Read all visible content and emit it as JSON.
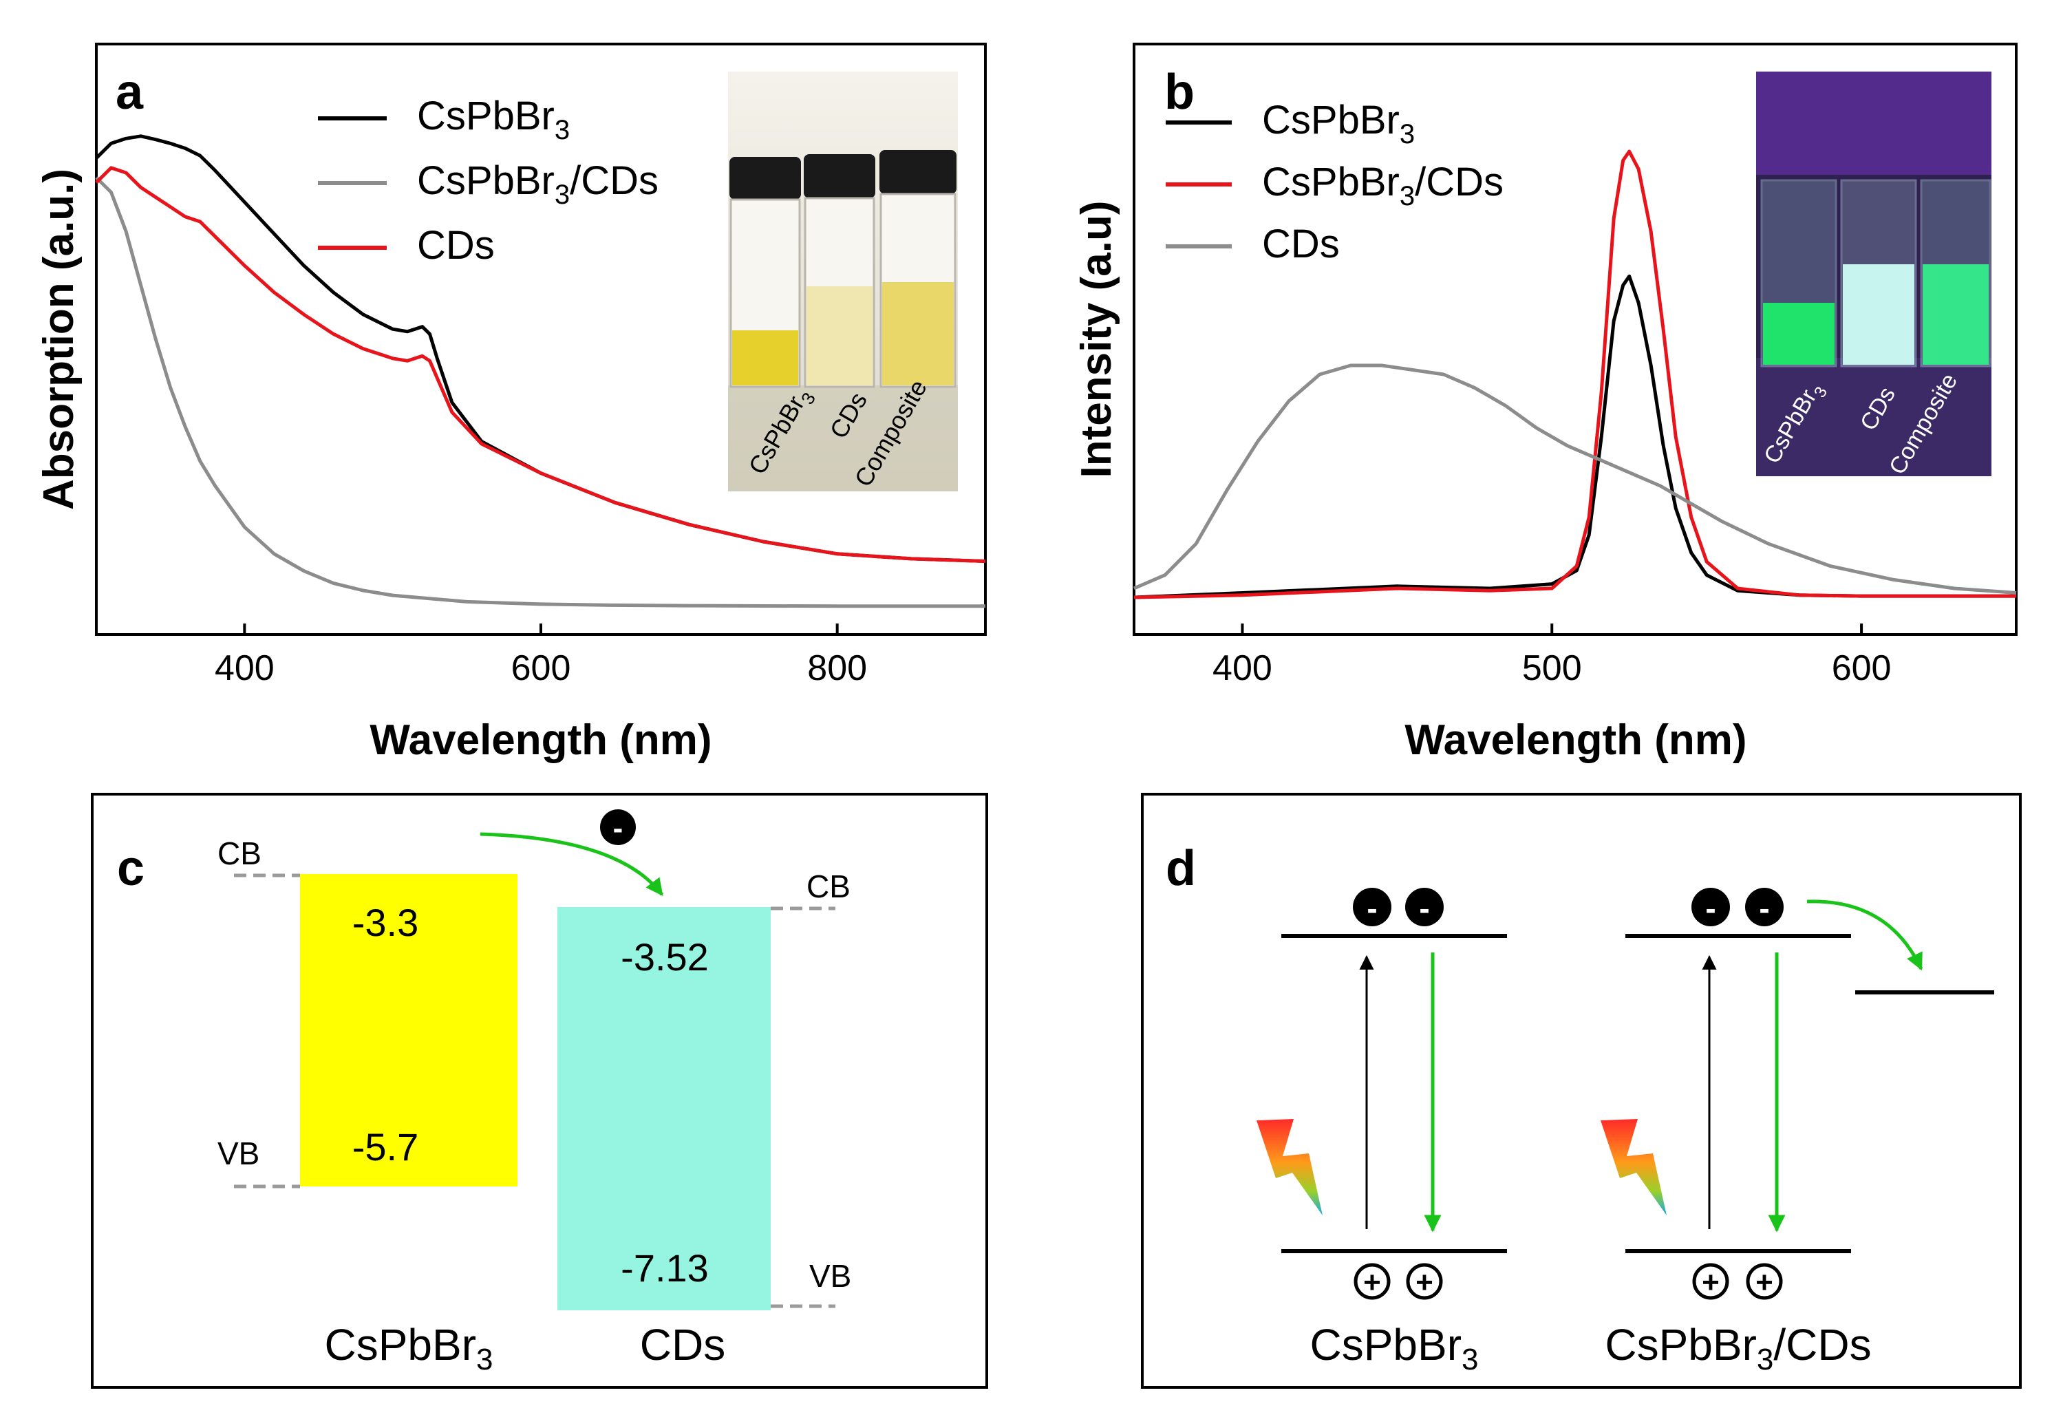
{
  "panels": {
    "a": {
      "label": "a"
    },
    "b": {
      "label": "b"
    },
    "c": {
      "label": "c"
    },
    "d": {
      "label": "d"
    }
  },
  "chart_data": [
    {
      "type": "line",
      "panel": "a",
      "title": "",
      "xlabel": "Wavelength (nm)",
      "ylabel": "Absorption (a.u.)",
      "xlim": [
        300,
        900
      ],
      "ylim": [
        0,
        1
      ],
      "xticks": [
        "400",
        "600",
        "800"
      ],
      "legend": {
        "position": "top-left-center",
        "entries": [
          {
            "base": "CsPbBr",
            "sub": "3",
            "tail": "",
            "color": "#000000"
          },
          {
            "base": "CsPbBr",
            "sub": "3",
            "tail": "/CDs",
            "color": "#8c8c8c"
          },
          {
            "base": "CDs",
            "sub": "",
            "tail": "",
            "color": "#e8141b"
          }
        ]
      },
      "series": [
        {
          "name": "CsPbBr3",
          "color": "#000000",
          "x": [
            300,
            310,
            320,
            330,
            340,
            350,
            360,
            370,
            380,
            400,
            420,
            440,
            460,
            480,
            500,
            510,
            515,
            520,
            525,
            530,
            540,
            560,
            600,
            650,
            700,
            750,
            800,
            850,
            900
          ],
          "y": [
            0.93,
            0.96,
            0.97,
            0.975,
            0.968,
            0.96,
            0.95,
            0.935,
            0.905,
            0.84,
            0.775,
            0.71,
            0.655,
            0.61,
            0.58,
            0.575,
            0.58,
            0.585,
            0.57,
            0.52,
            0.43,
            0.35,
            0.285,
            0.225,
            0.18,
            0.145,
            0.12,
            0.11,
            0.105
          ]
        },
        {
          "name": "CsPbBr3/CDs",
          "color": "#8c8c8c",
          "x": [
            300,
            310,
            320,
            330,
            340,
            350,
            360,
            370,
            380,
            400,
            420,
            440,
            460,
            480,
            500,
            550,
            600,
            650,
            700,
            800,
            900
          ],
          "y": [
            0.89,
            0.86,
            0.78,
            0.67,
            0.56,
            0.46,
            0.38,
            0.31,
            0.26,
            0.175,
            0.12,
            0.085,
            0.06,
            0.045,
            0.035,
            0.022,
            0.017,
            0.015,
            0.014,
            0.013,
            0.013
          ]
        },
        {
          "name": "CDs",
          "color": "#e8141b",
          "x": [
            300,
            310,
            320,
            330,
            340,
            350,
            360,
            370,
            380,
            400,
            420,
            440,
            460,
            480,
            500,
            510,
            515,
            520,
            525,
            530,
            540,
            560,
            600,
            650,
            700,
            750,
            800,
            850,
            900
          ],
          "y": [
            0.88,
            0.91,
            0.9,
            0.87,
            0.85,
            0.83,
            0.81,
            0.8,
            0.77,
            0.71,
            0.655,
            0.61,
            0.57,
            0.54,
            0.52,
            0.515,
            0.52,
            0.525,
            0.515,
            0.48,
            0.41,
            0.345,
            0.285,
            0.225,
            0.18,
            0.145,
            0.12,
            0.11,
            0.105
          ]
        }
      ],
      "inset": {
        "background": "#e6e4dc",
        "labels": [
          "CsPbBr",
          "CDs",
          "Composite"
        ],
        "label_sub": [
          "3",
          "",
          ""
        ]
      }
    },
    {
      "type": "line",
      "panel": "b",
      "title": "",
      "xlabel": "Wavelength (nm)",
      "ylabel": "Intensity (a.u)",
      "xlim": [
        365,
        650
      ],
      "ylim": [
        0,
        1
      ],
      "xticks": [
        "400",
        "500",
        "600"
      ],
      "legend": {
        "position": "top-left",
        "entries": [
          {
            "base": "CsPbBr",
            "sub": "3",
            "tail": "",
            "color": "#000000"
          },
          {
            "base": "CsPbBr",
            "sub": "3",
            "tail": "/CDs",
            "color": "#e8141b"
          },
          {
            "base": "CDs",
            "sub": "",
            "tail": "",
            "color": "#8c8c8c"
          }
        ]
      },
      "series": [
        {
          "name": "CsPbBr3",
          "color": "#000000",
          "x": [
            365,
            400,
            450,
            480,
            500,
            508,
            512,
            516,
            520,
            523,
            525,
            528,
            532,
            536,
            540,
            545,
            550,
            560,
            580,
            600,
            650
          ],
          "y": [
            0.0,
            0.01,
            0.025,
            0.02,
            0.03,
            0.06,
            0.14,
            0.36,
            0.62,
            0.7,
            0.72,
            0.66,
            0.52,
            0.34,
            0.2,
            0.1,
            0.05,
            0.015,
            0.005,
            0.003,
            0.003
          ]
        },
        {
          "name": "CsPbBr3/CDs",
          "color": "#e8141b",
          "x": [
            365,
            400,
            450,
            480,
            500,
            508,
            512,
            516,
            520,
            523,
            525,
            528,
            532,
            536,
            540,
            545,
            550,
            560,
            580,
            600,
            650
          ],
          "y": [
            0.0,
            0.005,
            0.02,
            0.015,
            0.02,
            0.07,
            0.18,
            0.46,
            0.85,
            0.98,
            1.0,
            0.96,
            0.82,
            0.6,
            0.36,
            0.18,
            0.08,
            0.02,
            0.005,
            0.003,
            0.003
          ]
        },
        {
          "name": "CDs",
          "color": "#8c8c8c",
          "x": [
            365,
            375,
            385,
            395,
            405,
            415,
            425,
            435,
            445,
            455,
            465,
            475,
            485,
            495,
            505,
            515,
            525,
            535,
            545,
            555,
            570,
            590,
            610,
            630,
            650
          ],
          "y": [
            0.02,
            0.05,
            0.12,
            0.24,
            0.35,
            0.44,
            0.5,
            0.52,
            0.52,
            0.51,
            0.5,
            0.47,
            0.43,
            0.38,
            0.34,
            0.31,
            0.28,
            0.25,
            0.21,
            0.17,
            0.12,
            0.07,
            0.04,
            0.02,
            0.01
          ]
        }
      ],
      "inset": {
        "background": "#3a2a6a",
        "labels": [
          "CsPbBr",
          "CDs",
          "Composite"
        ],
        "label_sub": [
          "3",
          "",
          ""
        ]
      }
    }
  ],
  "diagram_c": {
    "bars": [
      {
        "name": "CsPbBr",
        "sub": "3",
        "color": "#ffff00",
        "cb": "-3.3",
        "vb": "-5.7"
      },
      {
        "name": "CDs",
        "sub": "",
        "color": "#96f5e1",
        "cb": "-3.52",
        "vb": "-7.13"
      }
    ],
    "band_labels": {
      "cb": "CB",
      "vb": "VB"
    },
    "electron_symbol": "-",
    "arrow_color": "#19c319"
  },
  "diagram_d": {
    "systems": [
      {
        "name": "CsPbBr",
        "sub": "3",
        "tail": ""
      },
      {
        "name": "CsPbBr",
        "sub": "3",
        "tail": "/CDs"
      }
    ],
    "electron_symbol": "-",
    "hole_symbol": "+",
    "arrow_color": "#19c319"
  }
}
